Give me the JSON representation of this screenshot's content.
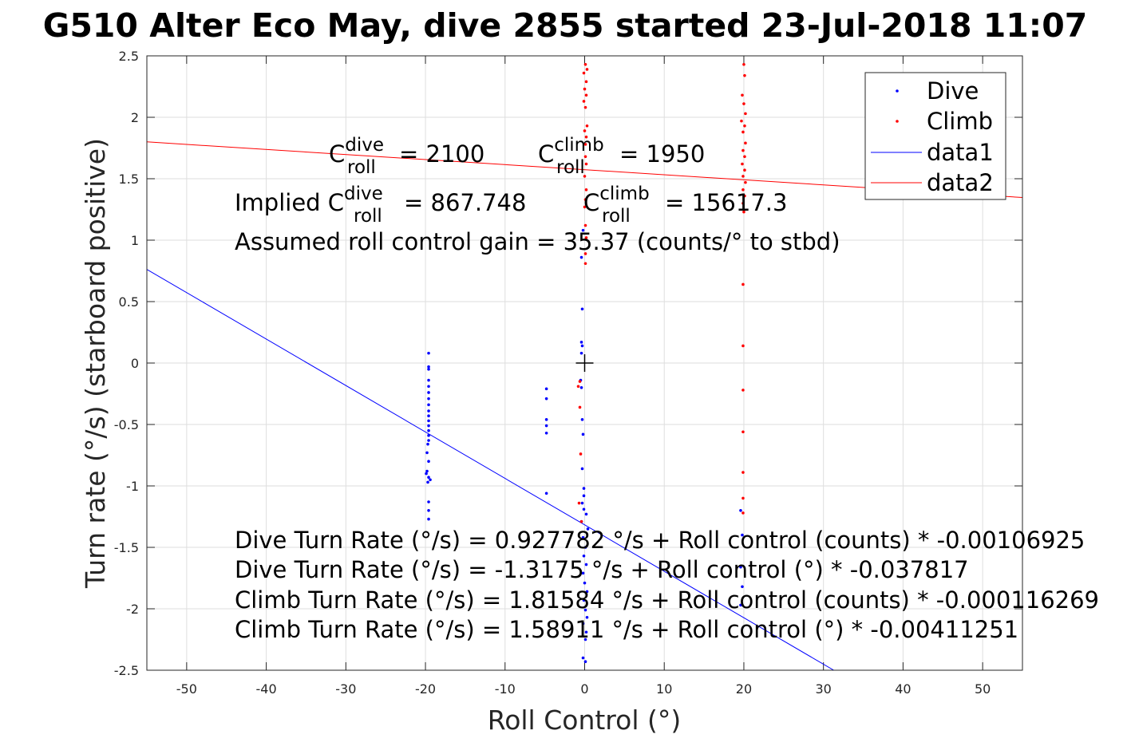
{
  "title": "G510 Alter Eco May, dive 2855 started 23-Jul-2018 11:07",
  "chart_data": {
    "type": "scatter",
    "title": "G510 Alter Eco May, dive 2855 started 23-Jul-2018 11:07",
    "xlabel": "Roll Control (°)",
    "ylabel": "Turn rate (°/s) (starboard positive)",
    "xlim": [
      -55,
      55
    ],
    "ylim": [
      -2.5,
      2.5
    ],
    "x_ticks": [
      -50,
      -40,
      -30,
      -20,
      -10,
      0,
      10,
      20,
      30,
      40,
      50
    ],
    "x_tick_labels": [
      "-50",
      "-40",
      "-30",
      "-20",
      "-10",
      "0",
      "10",
      "20",
      "30",
      "40",
      "50"
    ],
    "y_ticks": [
      -2.5,
      -2,
      -1.5,
      -1,
      -0.5,
      0,
      0.5,
      1,
      1.5,
      2,
      2.5
    ],
    "y_tick_labels": [
      "-2.5",
      "-2",
      "-1.5",
      "-1",
      "-0.5",
      "0",
      "0.5",
      "1",
      "1.5",
      "2",
      "2.5"
    ],
    "grid": true,
    "legend_position": "top-right",
    "legend": [
      "Dive",
      "Climb",
      "data1",
      "data2"
    ],
    "colors": {
      "dive": "#0000ff",
      "climb": "#ff0000",
      "data1": "#0000ff",
      "data2": "#ff0000",
      "marker": "#000000"
    },
    "series": [
      {
        "name": "Dive",
        "kind": "points",
        "points": [
          [
            -19.6,
            0.08
          ],
          [
            -19.6,
            -0.03
          ],
          [
            -19.6,
            -0.05
          ],
          [
            -19.6,
            -0.14
          ],
          [
            -19.6,
            -0.19
          ],
          [
            -19.6,
            -0.24
          ],
          [
            -19.6,
            -0.29
          ],
          [
            -19.6,
            -0.34
          ],
          [
            -19.6,
            -0.39
          ],
          [
            -19.6,
            -0.43
          ],
          [
            -19.6,
            -0.47
          ],
          [
            -19.6,
            -0.51
          ],
          [
            -19.6,
            -0.55
          ],
          [
            -19.6,
            -0.59
          ],
          [
            -19.6,
            -0.63
          ],
          [
            -19.7,
            -0.66
          ],
          [
            -19.8,
            -0.73
          ],
          [
            -19.6,
            -0.8
          ],
          [
            -19.8,
            -0.88
          ],
          [
            -19.9,
            -0.9
          ],
          [
            -19.6,
            -0.93
          ],
          [
            -19.4,
            -0.95
          ],
          [
            -19.7,
            -0.97
          ],
          [
            -19.6,
            -1.13
          ],
          [
            -19.6,
            -1.2
          ],
          [
            -19.6,
            -1.27
          ],
          [
            -4.8,
            -0.21
          ],
          [
            -4.8,
            -0.29
          ],
          [
            -4.8,
            -0.46
          ],
          [
            -4.8,
            -0.51
          ],
          [
            -4.8,
            -0.57
          ],
          [
            -4.8,
            -1.06
          ],
          [
            -0.2,
            1.08
          ],
          [
            -0.4,
            0.86
          ],
          [
            -0.3,
            0.44
          ],
          [
            -0.4,
            0.17
          ],
          [
            -0.3,
            0.14
          ],
          [
            -0.4,
            0.08
          ],
          [
            -0.5,
            -0.14
          ],
          [
            -0.4,
            -0.2
          ],
          [
            -0.3,
            -0.46
          ],
          [
            -0.2,
            -0.58
          ],
          [
            -0.3,
            -0.86
          ],
          [
            -0.1,
            -1.02
          ],
          [
            -0.1,
            -1.08
          ],
          [
            -0.3,
            -1.14
          ],
          [
            -0.1,
            -1.19
          ],
          [
            0.2,
            -1.23
          ],
          [
            -0.4,
            -1.29
          ],
          [
            0.4,
            -1.35
          ],
          [
            -0.2,
            -1.42
          ],
          [
            0.1,
            -1.5
          ],
          [
            -0.1,
            -1.57
          ],
          [
            0.2,
            -1.64
          ],
          [
            -0.2,
            -1.71
          ],
          [
            0.0,
            -1.79
          ],
          [
            0.3,
            -1.86
          ],
          [
            -0.1,
            -1.93
          ],
          [
            0.1,
            -2.01
          ],
          [
            0.3,
            -2.07
          ],
          [
            -0.2,
            -2.12
          ],
          [
            0.2,
            -2.19
          ],
          [
            0.1,
            -2.25
          ],
          [
            -0.2,
            -2.4
          ],
          [
            0.1,
            -2.43
          ],
          [
            19.6,
            -1.2
          ],
          [
            19.8,
            -1.4
          ],
          [
            19.6,
            -1.66
          ],
          [
            19.8,
            -1.82
          ],
          [
            19.6,
            -1.97
          ]
        ]
      },
      {
        "name": "Climb",
        "kind": "points",
        "points": [
          [
            0.1,
            2.43
          ],
          [
            0.3,
            2.39
          ],
          [
            -0.1,
            2.36
          ],
          [
            0.2,
            2.29
          ],
          [
            0.0,
            2.23
          ],
          [
            0.2,
            2.18
          ],
          [
            -0.1,
            2.13
          ],
          [
            0.1,
            2.08
          ],
          [
            0.3,
            1.93
          ],
          [
            0.0,
            1.89
          ],
          [
            0.2,
            1.84
          ],
          [
            0.1,
            1.78
          ],
          [
            0.1,
            1.68
          ],
          [
            0.2,
            1.62
          ],
          [
            0.0,
            1.52
          ],
          [
            0.2,
            1.41
          ],
          [
            0.1,
            1.33
          ],
          [
            0.0,
            1.27
          ],
          [
            0.1,
            1.12
          ],
          [
            0.2,
            1.02
          ],
          [
            0.1,
            0.89
          ],
          [
            0.1,
            0.81
          ],
          [
            -0.6,
            -0.15
          ],
          [
            -0.8,
            -0.19
          ],
          [
            -0.6,
            -0.36
          ],
          [
            -0.5,
            -0.74
          ],
          [
            -0.7,
            -1.14
          ],
          [
            -0.4,
            -1.29
          ],
          [
            20.0,
            2.43
          ],
          [
            20.1,
            2.34
          ],
          [
            19.8,
            2.18
          ],
          [
            20.0,
            2.11
          ],
          [
            20.2,
            2.03
          ],
          [
            19.7,
            1.97
          ],
          [
            20.1,
            1.93
          ],
          [
            19.9,
            1.88
          ],
          [
            20.2,
            1.79
          ],
          [
            19.9,
            1.73
          ],
          [
            20.1,
            1.68
          ],
          [
            19.8,
            1.62
          ],
          [
            20.1,
            1.57
          ],
          [
            19.9,
            1.52
          ],
          [
            20.2,
            1.47
          ],
          [
            19.9,
            1.41
          ],
          [
            20.1,
            1.36
          ],
          [
            19.9,
            1.3
          ],
          [
            20.0,
            1.23
          ],
          [
            19.9,
            0.64
          ],
          [
            19.9,
            0.14
          ],
          [
            19.9,
            -0.22
          ],
          [
            19.9,
            -0.56
          ],
          [
            19.9,
            -0.89
          ],
          [
            19.9,
            -1.1
          ],
          [
            19.9,
            -1.22
          ]
        ]
      },
      {
        "name": "data1",
        "kind": "line",
        "points": [
          [
            -55,
            0.762
          ],
          [
            31.3,
            -2.5
          ]
        ]
      },
      {
        "name": "data2",
        "kind": "line",
        "points": [
          [
            -55,
            1.8
          ],
          [
            55,
            1.347
          ]
        ]
      }
    ],
    "marker_point": [
      0,
      0
    ]
  },
  "annotations": {
    "c_roll_dive_prefix": "C",
    "c_roll_dive_sup": "dive",
    "c_roll_dive_sub": "roll",
    "c_roll_dive_value": "= 2100",
    "c_roll_climb_prefix": "C",
    "c_roll_climb_sup": "climb",
    "c_roll_climb_sub": "roll",
    "c_roll_climb_value": "= 1950",
    "implied_prefix": "Implied C",
    "implied_dive_sup": "dive",
    "implied_dive_sub": "roll",
    "implied_dive_value": "= 867.748",
    "implied_climb_prefix": "C",
    "implied_climb_sup": "climb",
    "implied_climb_sub": "roll",
    "implied_climb_value": "= 15617.3",
    "gain": "Assumed roll control gain = 35.37 (counts/° to stbd)",
    "eq1": "Dive Turn Rate (°/s) = 0.927782 °/s + Roll control (counts) * -0.00106925",
    "eq2": "Dive Turn Rate (°/s) = -1.3175 °/s + Roll control (°) * -0.037817",
    "eq3": "Climb Turn Rate (°/s) = 1.81584 °/s + Roll control (counts) * -0.000116269",
    "eq4": "Climb Turn Rate (°/s) = 1.58911 °/s + Roll control (°) * -0.00411251"
  }
}
